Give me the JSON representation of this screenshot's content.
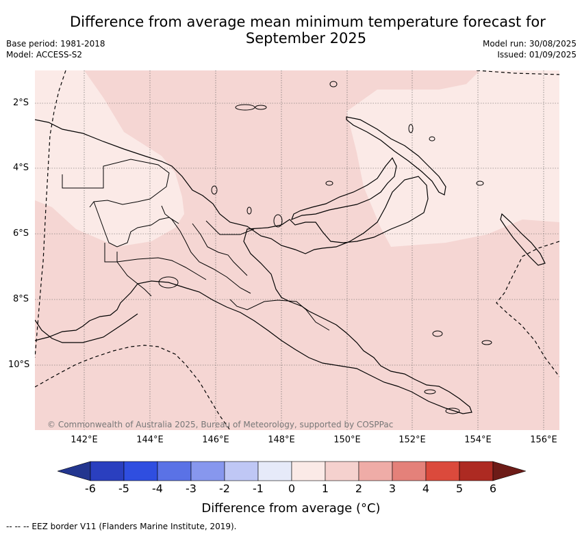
{
  "title": {
    "line1": "Difference from average mean minimum temperature forecast for",
    "line2": "September 2025"
  },
  "meta": {
    "base_period": "Base period: 1981-2018",
    "model": "Model: ACCESS-S2",
    "model_run": "Model run: 30/08/2025",
    "issued": "Issued: 01/09/2025"
  },
  "map": {
    "lat_labels": [
      "2°S",
      "4°S",
      "6°S",
      "8°S",
      "10°S"
    ],
    "lon_labels": [
      "142°E",
      "144°E",
      "146°E",
      "148°E",
      "150°E",
      "152°E",
      "154°E",
      "156°E"
    ],
    "copyright": "© Commonwealth of Australia 2025, Bureau of Meteorology, supported by COSPPac",
    "fill_colors": {
      "bin_1_2": "#f5d6d3",
      "bin_0_1": "#fbeae7"
    }
  },
  "colorbar": {
    "labels": [
      "-6",
      "-5",
      "-4",
      "-3",
      "-2",
      "-1",
      "0",
      "1",
      "2",
      "3",
      "4",
      "5",
      "6"
    ],
    "colors": [
      "#23368f",
      "#2a3fbf",
      "#2f4ee0",
      "#5a72e6",
      "#8797ee",
      "#bfc7f5",
      "#e6eaf9",
      "#fbeae7",
      "#f5d1ce",
      "#efaca7",
      "#e4817a",
      "#db4a3c",
      "#ad2a22",
      "#6d1b17"
    ],
    "title": "Difference from average (°C)"
  },
  "legend": "--  --  -- EEZ border V11 (Flanders Marine Institute, 2019)."
}
